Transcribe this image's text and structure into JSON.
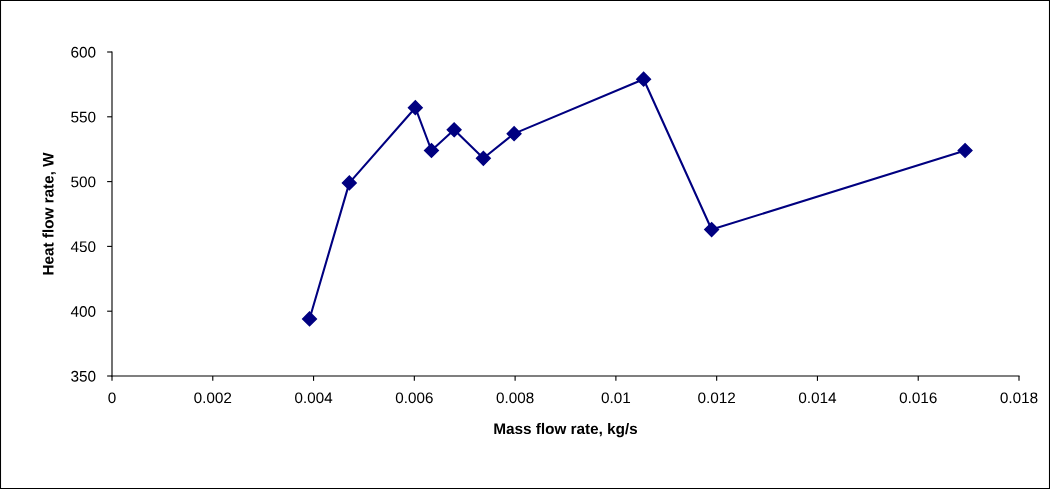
{
  "chart_data": {
    "type": "line",
    "xlabel": "Mass flow rate, kg/s",
    "ylabel": "Heat flow rate, W",
    "x": [
      0.00392,
      0.00471,
      0.00602,
      0.00634,
      0.00679,
      0.00737,
      0.00798,
      0.01055,
      0.0119,
      0.01693
    ],
    "series": [
      {
        "color": "#000080",
        "values": [
          394,
          499,
          557,
          524,
          540,
          518,
          537,
          579,
          463,
          524
        ]
      }
    ],
    "xlim": [
      0,
      0.018
    ],
    "xticks": [
      0,
      0.002,
      0.004,
      0.006,
      0.008,
      0.01,
      0.012,
      0.014,
      0.016,
      0.018
    ],
    "ylim": [
      350,
      600
    ],
    "yticks": [
      350,
      400,
      450,
      500,
      550,
      600
    ],
    "marker": "diamond",
    "line_style": "solid",
    "grid": false,
    "legend": false
  }
}
